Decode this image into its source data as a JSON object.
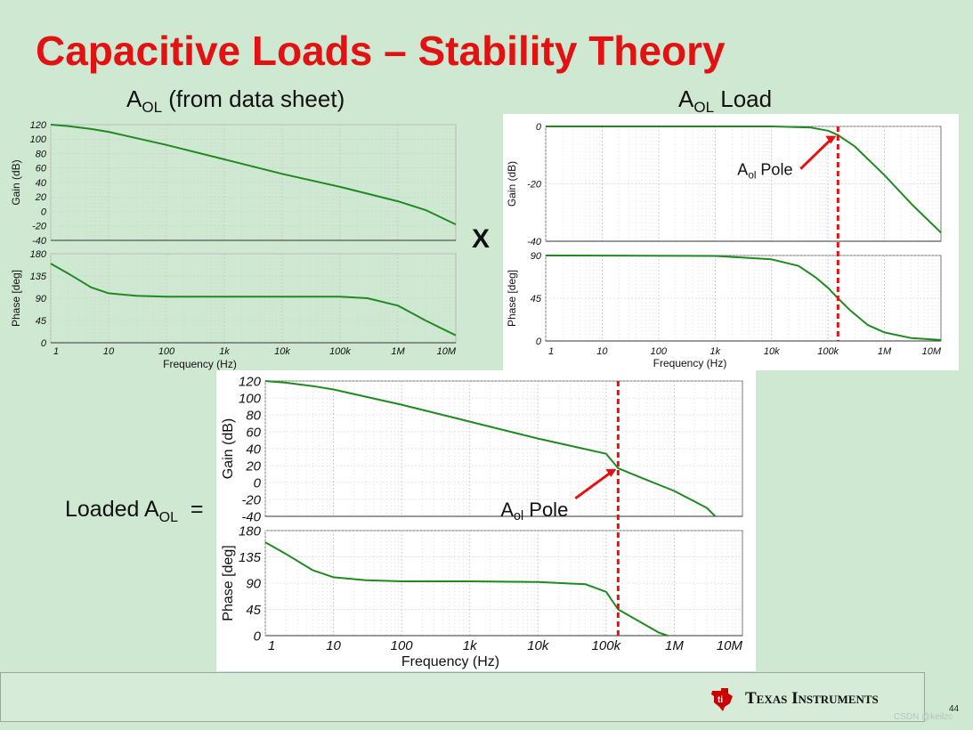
{
  "slide": {
    "title": "Capacitive Loads – Stability Theory",
    "heading_left_main": "A",
    "heading_left_sub": "OL",
    "heading_left_rest": " (from data sheet)",
    "heading_right_main": "A",
    "heading_right_sub": "OL",
    "heading_right_rest": " Load",
    "times_sign": "X",
    "loaded_main": "Loaded A",
    "loaded_sub": "OL",
    "loaded_eq": "=",
    "brand": "Texas Instruments",
    "page_number": "44",
    "watermark": "CSDN @keilzc"
  },
  "colors": {
    "title": "#e31212",
    "curve": "#1f8a1f",
    "marker": "#e31212",
    "grid": "#c9c9c9"
  },
  "chart_data": [
    {
      "id": "aol-datasheet",
      "type": "line",
      "title": "AOL (from data sheet)",
      "xlabel": "Frequency (Hz)",
      "xscale": "log",
      "xlim": [
        1,
        10000000
      ],
      "x_tick_values": [
        1,
        10,
        100,
        1000,
        10000,
        100000,
        1000000,
        10000000
      ],
      "x_tick_labels": [
        "1",
        "10",
        "100",
        "1k",
        "10k",
        "100k",
        "1M",
        "10M"
      ],
      "panels": [
        {
          "ylabel": "Gain (dB)",
          "ylim": [
            -40,
            120
          ],
          "y_ticks": [
            120,
            100,
            80,
            60,
            40,
            20,
            0,
            -20,
            -40
          ],
          "x": [
            1,
            2,
            5,
            10,
            100,
            1000,
            10000,
            100000,
            1000000,
            3000000,
            10000000
          ],
          "y": [
            120,
            118,
            114,
            110,
            92,
            72,
            52,
            34,
            14,
            2,
            -18
          ]
        },
        {
          "ylabel": "Phase [deg]",
          "ylim": [
            0,
            180
          ],
          "y_ticks": [
            180,
            135,
            90,
            45,
            0
          ],
          "x": [
            1,
            2,
            5,
            10,
            30,
            100,
            1000,
            10000,
            100000,
            300000,
            1000000,
            3000000,
            10000000
          ],
          "y": [
            160,
            140,
            112,
            100,
            95,
            93,
            93,
            93,
            93,
            90,
            75,
            45,
            15
          ]
        }
      ]
    },
    {
      "id": "aol-load",
      "type": "line",
      "title": "AOL Load",
      "xlabel": "Frequency (Hz)",
      "xscale": "log",
      "xlim": [
        1,
        10000000
      ],
      "x_tick_values": [
        1,
        10,
        100,
        1000,
        10000,
        100000,
        1000000,
        10000000
      ],
      "x_tick_labels": [
        "1",
        "10",
        "100",
        "1k",
        "10k",
        "100k",
        "1M",
        "10M"
      ],
      "pole_frequency": 150000,
      "annotation": {
        "text_main": "A",
        "text_sub": "ol",
        "text_rest": " Pole"
      },
      "panels": [
        {
          "ylabel": "Gain (dB)",
          "ylim": [
            -40,
            0
          ],
          "y_ticks": [
            0,
            -20,
            -40
          ],
          "x": [
            1,
            10,
            100,
            1000,
            10000,
            50000,
            100000,
            150000,
            300000,
            1000000,
            3000000,
            10000000
          ],
          "y": [
            0,
            0,
            0,
            0,
            0,
            -0.4,
            -1.5,
            -3,
            -7,
            -17,
            -27,
            -37
          ]
        },
        {
          "ylabel": "Phase [deg]",
          "ylim": [
            0,
            90
          ],
          "y_ticks": [
            90,
            45,
            0
          ],
          "x": [
            1,
            1000,
            10000,
            30000,
            60000,
            100000,
            150000,
            250000,
            500000,
            1000000,
            3000000,
            10000000
          ],
          "y": [
            90,
            89.5,
            86,
            79,
            67,
            56,
            45,
            32,
            17,
            9,
            3,
            1
          ]
        }
      ]
    },
    {
      "id": "loaded-aol",
      "type": "line",
      "title": "Loaded AOL",
      "xlabel": "Frequency (Hz)",
      "xscale": "log",
      "xlim": [
        1,
        10000000
      ],
      "x_tick_values": [
        1,
        10,
        100,
        1000,
        10000,
        100000,
        1000000,
        10000000
      ],
      "x_tick_labels": [
        "1",
        "10",
        "100",
        "1k",
        "10k",
        "100k",
        "1M",
        "10M"
      ],
      "pole_frequency": 150000,
      "annotation": {
        "text_main": "A",
        "text_sub": "ol",
        "text_rest": " Pole"
      },
      "panels": [
        {
          "ylabel": "Gain (dB)",
          "ylim": [
            -40,
            120
          ],
          "y_ticks": [
            120,
            100,
            80,
            60,
            40,
            20,
            0,
            -20,
            -40
          ],
          "x": [
            1,
            2,
            5,
            10,
            100,
            1000,
            10000,
            100000,
            150000,
            300000,
            1000000,
            3000000,
            4000000
          ],
          "y": [
            120,
            118,
            114,
            110,
            92,
            72,
            52,
            34,
            17,
            7,
            -10,
            -30,
            -40
          ]
        },
        {
          "ylabel": "Phase [deg]",
          "ylim": [
            0,
            180
          ],
          "y_ticks": [
            180,
            135,
            90,
            45,
            0
          ],
          "x": [
            1,
            2,
            5,
            10,
            30,
            100,
            1000,
            10000,
            50000,
            100000,
            150000,
            300000,
            600000,
            800000
          ],
          "y": [
            160,
            140,
            112,
            100,
            95,
            93,
            93,
            92,
            88,
            75,
            45,
            25,
            5,
            0
          ]
        }
      ]
    }
  ]
}
